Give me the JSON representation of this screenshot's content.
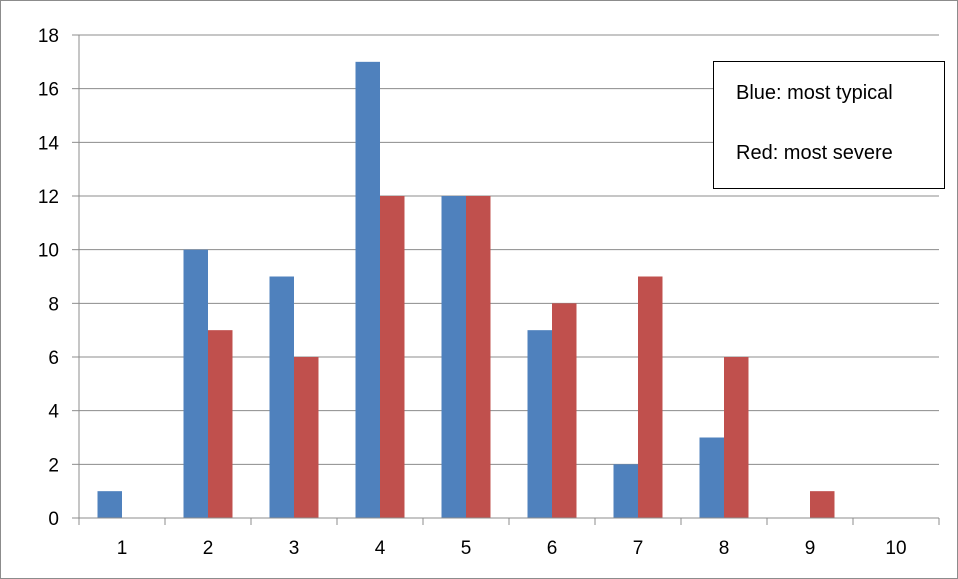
{
  "chart_data": {
    "type": "bar",
    "title": "",
    "xlabel": "",
    "ylabel": "",
    "categories": [
      "1",
      "2",
      "3",
      "4",
      "5",
      "6",
      "7",
      "8",
      "9",
      "10"
    ],
    "series": [
      {
        "color": "#4f81bd",
        "values": [
          1,
          10,
          9,
          17,
          12,
          7,
          2,
          3,
          0,
          0
        ]
      },
      {
        "color": "#c0504d",
        "values": [
          0,
          7,
          6,
          12,
          12,
          8,
          9,
          6,
          1,
          0
        ]
      }
    ],
    "ylim": [
      0,
      18
    ],
    "yticks": [
      0,
      2,
      4,
      6,
      8,
      10,
      12,
      14,
      16,
      18
    ],
    "grid": true,
    "legend_placement": "top-right",
    "annotation": {
      "lines": [
        "Blue: most typical",
        "Red: most severe"
      ]
    }
  }
}
